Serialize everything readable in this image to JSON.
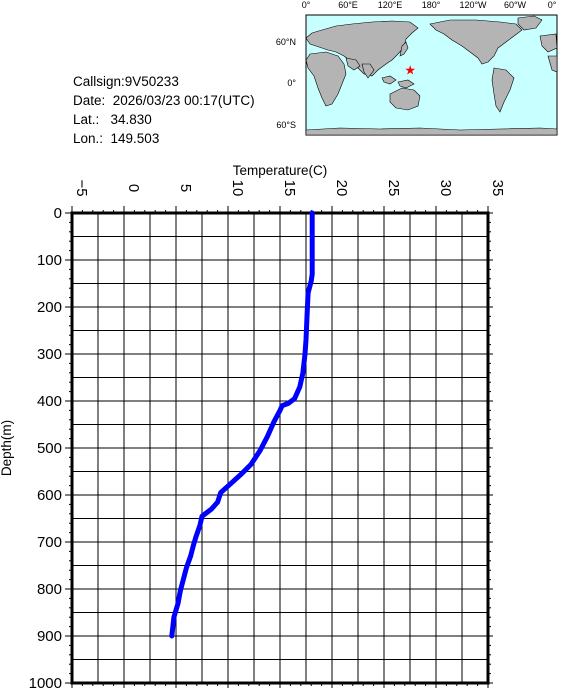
{
  "info": {
    "callsign": "Callsign:9V50233",
    "date": "Date:  2026/03/23 00:17(UTC)",
    "lat": "Lat.:   34.830",
    "lon": "Lon.:  149.503"
  },
  "map": {
    "top_labels": [
      "0°",
      "60°E",
      "120°E",
      "180°",
      "120°W",
      "60°W",
      "0°"
    ],
    "left_labels": [
      "60°N",
      "0°",
      "60°S"
    ],
    "marker": {
      "lat": 34.83,
      "lon": 149.503,
      "color": "#ff0000"
    },
    "ocean_color": "#c8ffff",
    "land_color": "#b4b4b4"
  },
  "chart_data": {
    "type": "line",
    "title": "",
    "xlabel": "Temperature(C)",
    "ylabel": "Depth(m)",
    "xlim": [
      -5,
      35
    ],
    "ylim": [
      0,
      1000
    ],
    "x_ticks": [
      "−5",
      "0",
      "5",
      "10",
      "15",
      "20",
      "25",
      "30",
      "35"
    ],
    "y_ticks": [
      "0",
      "100",
      "200",
      "300",
      "400",
      "500",
      "600",
      "700",
      "800",
      "900",
      "1000"
    ],
    "grid": true,
    "series": [
      {
        "color": "#0000ff",
        "x": [
          18.1,
          18.1,
          18.1,
          18.0,
          17.7,
          17.6,
          17.5,
          17.4,
          17.2,
          16.9,
          16.4,
          15.8,
          15.2,
          15.0,
          14.4,
          13.8,
          13.1,
          12.2,
          11.3,
          10.3,
          9.3,
          9.0,
          8.4,
          7.5,
          7.3,
          6.9,
          6.7,
          6.4,
          6.0,
          5.7,
          5.4,
          5.2,
          4.8,
          4.6
        ],
        "y": [
          0,
          60,
          130,
          145,
          170,
          220,
          270,
          300,
          340,
          370,
          395,
          405,
          410,
          420,
          445,
          475,
          505,
          535,
          555,
          575,
          595,
          615,
          630,
          645,
          665,
          690,
          705,
          730,
          755,
          780,
          805,
          830,
          860,
          900
        ]
      }
    ]
  }
}
